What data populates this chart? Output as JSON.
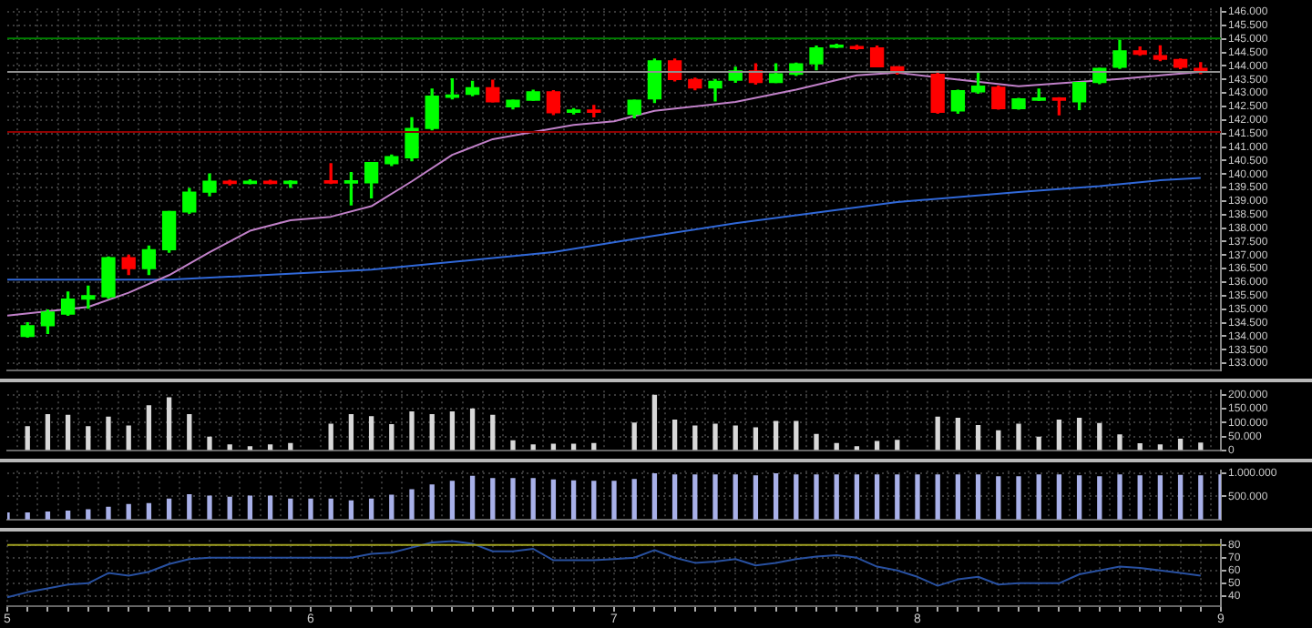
{
  "chart_data": [
    {
      "type": "candlestick",
      "categories": [
        "5",
        null,
        null,
        null,
        null,
        null,
        null,
        null,
        null,
        null,
        null,
        null,
        null,
        null,
        null,
        "6",
        null,
        null,
        null,
        null,
        null,
        null,
        null,
        null,
        null,
        null,
        null,
        null,
        null,
        null,
        "7",
        null,
        null,
        null,
        null,
        null,
        null,
        null,
        null,
        null,
        null,
        null,
        null,
        null,
        null,
        "8",
        null,
        null,
        null,
        null,
        null,
        null,
        null,
        null,
        null,
        null,
        null,
        null,
        null,
        null,
        "9"
      ],
      "ohlc": [
        null,
        [
          133990,
          134500,
          133970,
          134390
        ],
        [
          134390,
          134970,
          134100,
          134890
        ],
        [
          134820,
          135630,
          134780,
          135370
        ],
        [
          135370,
          135850,
          135040,
          135500
        ],
        [
          135460,
          136930,
          135410,
          136900
        ],
        [
          136900,
          137000,
          136280,
          136500
        ],
        [
          136500,
          137330,
          136280,
          137200
        ],
        [
          137200,
          138610,
          137110,
          138610
        ],
        [
          138600,
          139460,
          138550,
          139330
        ],
        [
          139330,
          140000,
          139200,
          139730
        ],
        [
          139730,
          139770,
          139600,
          139650
        ],
        [
          139650,
          139780,
          139640,
          139730
        ],
        [
          139730,
          139770,
          139640,
          139650
        ],
        [
          139650,
          139750,
          139510,
          139730
        ],
        null,
        [
          139750,
          140380,
          139650,
          139670
        ],
        [
          139670,
          140050,
          138860,
          139750
        ],
        [
          139680,
          140420,
          139120,
          140420
        ],
        [
          140380,
          140700,
          140320,
          140640
        ],
        [
          140600,
          142080,
          140490,
          141690
        ],
        [
          141690,
          143140,
          141640,
          142880
        ],
        [
          142840,
          143520,
          142780,
          142920
        ],
        [
          142950,
          143430,
          142900,
          143190
        ],
        [
          143190,
          143470,
          142670,
          142670
        ],
        [
          142490,
          142730,
          142410,
          142730
        ],
        [
          142730,
          143100,
          142730,
          143040
        ],
        [
          143040,
          143080,
          142200,
          142270
        ],
        [
          142290,
          142420,
          142230,
          142370
        ],
        [
          142370,
          142540,
          142120,
          142290
        ],
        null,
        [
          142210,
          142730,
          142080,
          142730
        ],
        [
          142780,
          144250,
          142650,
          144190
        ],
        [
          144190,
          144250,
          143450,
          143500
        ],
        [
          143500,
          143550,
          143120,
          143190
        ],
        [
          143190,
          143500,
          142710,
          143430
        ],
        [
          143470,
          143950,
          143400,
          143820
        ],
        [
          143820,
          144080,
          143330,
          143390
        ],
        [
          143390,
          144080,
          143390,
          143710
        ],
        [
          143690,
          144100,
          143650,
          144080
        ],
        [
          144080,
          144730,
          143860,
          144670
        ],
        [
          144690,
          144800,
          144680,
          144770
        ],
        [
          144720,
          144760,
          144620,
          144640
        ],
        [
          144670,
          144730,
          143970,
          143970
        ],
        [
          143970,
          143970,
          143700,
          143760
        ],
        null,
        [
          143690,
          143800,
          142250,
          142290
        ],
        [
          142340,
          143100,
          142250,
          143080
        ],
        [
          143040,
          143760,
          142990,
          143250
        ],
        [
          143210,
          143250,
          142400,
          142420
        ],
        [
          142420,
          142800,
          142400,
          142780
        ],
        [
          142730,
          143140,
          142720,
          142810
        ],
        [
          142810,
          142820,
          142190,
          142730
        ],
        [
          142670,
          143390,
          142390,
          143390
        ],
        [
          143390,
          143910,
          143350,
          143910
        ],
        [
          143950,
          144950,
          143910,
          144560
        ],
        [
          144560,
          144700,
          144400,
          144430
        ],
        [
          144380,
          144740,
          144200,
          144250
        ],
        [
          144240,
          144250,
          143900,
          143950
        ],
        [
          143910,
          144120,
          143720,
          143780
        ],
        null
      ],
      "colors": [
        null,
        "#00ff00",
        "#00ff00",
        "#00ff00",
        "#00ff00",
        "#00ff00",
        "#ff0000",
        "#00ff00",
        "#00ff00",
        "#00ff00",
        "#00ff00",
        "#ff0000",
        "#00ff00",
        "#ff0000",
        "#00ff00",
        null,
        "#ff0000",
        "#00ff00",
        "#00ff00",
        "#00ff00",
        "#00ff00",
        "#00ff00",
        "#00ff00",
        "#00ff00",
        "#ff0000",
        "#00ff00",
        "#00ff00",
        "#ff0000",
        "#00ff00",
        "#ff0000",
        null,
        "#00ff00",
        "#00ff00",
        "#ff0000",
        "#ff0000",
        "#00ff00",
        "#00ff00",
        "#ff0000",
        "#00ff00",
        "#00ff00",
        "#00ff00",
        "#00ff00",
        "#ff0000",
        "#ff0000",
        "#ff0000",
        null,
        "#ff0000",
        "#00ff00",
        "#00ff00",
        "#ff0000",
        "#00ff00",
        "#00ff00",
        "#ff0000",
        "#00ff00",
        "#00ff00",
        "#00ff00",
        "#ff0000",
        "#ff0000",
        "#ff0000",
        "#ff0000",
        null
      ],
      "series": [
        {
          "type": "line",
          "color": "#c080c8",
          "values": [
            134760,
            null,
            null,
            null,
            135080,
            null,
            135610,
            null,
            136260,
            null,
            137110,
            null,
            137900,
            null,
            138290,
            null,
            138420,
            null,
            138810,
            null,
            139730,
            null,
            140710,
            null,
            141290,
            null,
            141560,
            null,
            141820,
            null,
            141950,
            null,
            142340,
            null,
            null,
            null,
            142670,
            null,
            null,
            143120,
            null,
            null,
            143650,
            null,
            143750,
            null,
            143580,
            null,
            null,
            null,
            143250,
            null,
            null,
            null,
            null,
            143520,
            null,
            143650,
            null,
            143780,
            null
          ]
        },
        {
          "type": "line",
          "color": "#3068d8",
          "values": [
            136090,
            null,
            null,
            null,
            null,
            null,
            null,
            null,
            136090,
            null,
            null,
            null,
            null,
            null,
            null,
            null,
            null,
            null,
            136460,
            null,
            null,
            null,
            null,
            null,
            null,
            null,
            null,
            137110,
            null,
            null,
            null,
            null,
            137720,
            null,
            null,
            null,
            138180,
            null,
            null,
            null,
            null,
            null,
            null,
            null,
            138960,
            null,
            null,
            null,
            null,
            null,
            139330,
            null,
            null,
            null,
            139550,
            null,
            null,
            139770,
            null,
            139860,
            null
          ]
        }
      ],
      "ylim": [
        132740,
        146130
      ],
      "yticks": [
        {
          "value": 133000,
          "label": "133.000"
        },
        {
          "value": 133500,
          "label": "133.500"
        },
        {
          "value": 134000,
          "label": "134.000"
        },
        {
          "value": 134500,
          "label": "134.500"
        },
        {
          "value": 135000,
          "label": "135.000"
        },
        {
          "value": 135500,
          "label": "135.500"
        },
        {
          "value": 136000,
          "label": "136.000"
        },
        {
          "value": 136500,
          "label": "136.500"
        },
        {
          "value": 137000,
          "label": "137.000"
        },
        {
          "value": 137500,
          "label": "137.500"
        },
        {
          "value": 138000,
          "label": "138.000"
        },
        {
          "value": 138500,
          "label": "138.500"
        },
        {
          "value": 139000,
          "label": "139.000"
        },
        {
          "value": 139500,
          "label": "139.500"
        },
        {
          "value": 140000,
          "label": "140.000"
        },
        {
          "value": 140500,
          "label": "140.500"
        },
        {
          "value": 141000,
          "label": "141.000"
        },
        {
          "value": 141500,
          "label": "141.500"
        },
        {
          "value": 142000,
          "label": "142.000"
        },
        {
          "value": 142500,
          "label": "142.500"
        },
        {
          "value": 143000,
          "label": "143.000"
        },
        {
          "value": 143500,
          "label": "143.500"
        },
        {
          "value": 144000,
          "label": "144.000"
        },
        {
          "value": 144500,
          "label": "144.500"
        },
        {
          "value": 145000,
          "label": "145.000"
        },
        {
          "value": 145500,
          "label": "145.500"
        },
        {
          "value": 146000,
          "label": "146.000"
        }
      ],
      "ref_lines": [
        {
          "axis": "y",
          "value": 145020,
          "color": "#008000"
        },
        {
          "axis": "y",
          "value": 143780,
          "color": "#909090"
        },
        {
          "axis": "y",
          "value": 141560,
          "color": "#900000"
        }
      ],
      "grid": true,
      "tick_labels": "y"
    },
    {
      "type": "bar",
      "categories": [
        "5",
        null,
        null,
        null,
        null,
        null,
        null,
        null,
        null,
        null,
        null,
        null,
        null,
        null,
        null,
        "6",
        null,
        null,
        null,
        null,
        null,
        null,
        null,
        null,
        null,
        null,
        null,
        null,
        null,
        null,
        "7",
        null,
        null,
        null,
        null,
        null,
        null,
        null,
        null,
        null,
        null,
        null,
        null,
        null,
        null,
        "8",
        null,
        null,
        null,
        null,
        null,
        null,
        null,
        null,
        null,
        null,
        null,
        null,
        null,
        null,
        "9"
      ],
      "values": [
        null,
        85000,
        128000,
        126000,
        85000,
        119000,
        87000,
        160000,
        189000,
        128000,
        47000,
        19000,
        13000,
        19000,
        24000,
        null,
        94000,
        128000,
        121000,
        92000,
        138000,
        128000,
        138000,
        149000,
        126000,
        34000,
        19000,
        22000,
        22000,
        24000,
        null,
        98000,
        198000,
        109000,
        87000,
        94000,
        87000,
        81000,
        104000,
        104000,
        57000,
        24000,
        13000,
        32000,
        36000,
        null,
        119000,
        115000,
        89000,
        70000,
        94000,
        47000,
        109000,
        115000,
        96000,
        55000,
        23000,
        19000,
        40000,
        26000,
        null
      ],
      "color": "#d8d8d8",
      "ylim": [
        0,
        215000
      ],
      "yticks": [
        {
          "value": 0,
          "label": "0"
        },
        {
          "value": 50000,
          "label": "50.000"
        },
        {
          "value": 100000,
          "label": "100.000"
        },
        {
          "value": 150000,
          "label": "150.000"
        },
        {
          "value": 200000,
          "label": "200.000"
        }
      ],
      "grid": true,
      "tick_labels": "y"
    },
    {
      "type": "bar",
      "categories": [
        "5",
        null,
        null,
        null,
        null,
        null,
        null,
        null,
        null,
        null,
        null,
        null,
        null,
        null,
        null,
        "6",
        null,
        null,
        null,
        null,
        null,
        null,
        null,
        null,
        null,
        null,
        null,
        null,
        null,
        null,
        "7",
        null,
        null,
        null,
        null,
        null,
        null,
        null,
        null,
        null,
        null,
        null,
        null,
        null,
        null,
        "8",
        null,
        null,
        null,
        null,
        null,
        null,
        null,
        null,
        null,
        null,
        null,
        null,
        null,
        null,
        "9"
      ],
      "values": [
        140000,
        140000,
        160000,
        180000,
        210000,
        260000,
        320000,
        340000,
        440000,
        530000,
        500000,
        480000,
        500000,
        500000,
        440000,
        440000,
        440000,
        400000,
        440000,
        520000,
        640000,
        740000,
        820000,
        930000,
        880000,
        880000,
        880000,
        850000,
        830000,
        820000,
        820000,
        860000,
        980000,
        960000,
        960000,
        960000,
        960000,
        940000,
        980000,
        960000,
        960000,
        960000,
        960000,
        960000,
        960000,
        960000,
        960000,
        960000,
        960000,
        920000,
        920000,
        960000,
        960000,
        940000,
        920000,
        960000,
        940000,
        940000,
        950000,
        940000,
        960000
      ],
      "color": "#a8b0e8",
      "ylim": [
        0,
        1050000
      ],
      "yticks": [
        {
          "value": 500000,
          "label": "500.000"
        },
        {
          "value": 1000000,
          "label": "1.000.000"
        }
      ],
      "grid": true,
      "tick_labels": "y"
    },
    {
      "type": "line",
      "categories": [
        "5",
        null,
        null,
        null,
        null,
        null,
        null,
        null,
        null,
        null,
        null,
        null,
        null,
        null,
        null,
        "6",
        null,
        null,
        null,
        null,
        null,
        null,
        null,
        null,
        null,
        null,
        null,
        null,
        null,
        null,
        "7",
        null,
        null,
        null,
        null,
        null,
        null,
        null,
        null,
        null,
        null,
        null,
        null,
        null,
        null,
        "8",
        null,
        null,
        null,
        null,
        null,
        null,
        null,
        null,
        null,
        null,
        null,
        null,
        null,
        null,
        "9"
      ],
      "values": [
        39,
        43,
        46,
        49,
        50,
        58,
        56,
        59,
        65,
        69,
        70,
        70,
        70,
        70,
        70,
        70,
        70,
        70,
        73,
        74,
        78,
        82,
        83,
        81,
        75,
        75,
        77,
        68,
        68,
        68,
        69,
        70,
        76,
        70,
        66,
        67,
        69,
        64,
        66,
        69,
        71,
        72,
        70,
        63,
        60,
        55,
        48,
        53,
        55,
        49,
        50,
        50,
        50,
        57,
        60,
        63,
        62,
        60,
        58,
        56,
        null
      ],
      "color": "#2850a0",
      "ylim": [
        32,
        84
      ],
      "yticks": [
        40,
        50,
        60,
        70,
        80
      ],
      "ref_lines": [
        {
          "axis": "y",
          "value": 80,
          "color": "#a0a020"
        }
      ],
      "grid": true
    }
  ]
}
